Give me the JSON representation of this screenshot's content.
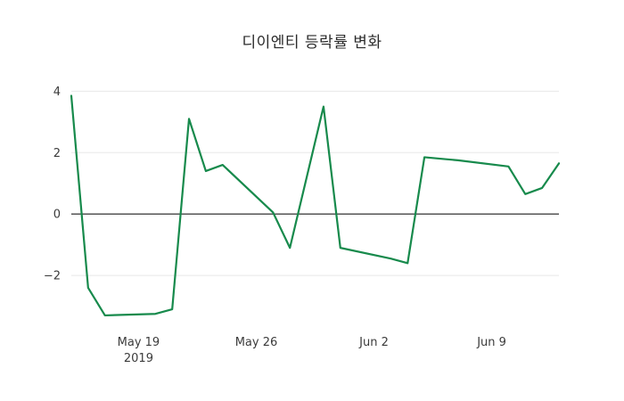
{
  "title": "디이엔티 등락률 변화",
  "colors": {
    "line": "#178a4c",
    "grid": "#e8e8e8",
    "zero_line": "#444444",
    "text": "#3b3b3b",
    "title_text": "#2a2a2a",
    "background": "#ffffff"
  },
  "chart_data": {
    "type": "line",
    "title": "디이엔티 등락률 변화",
    "xlabel": "",
    "ylabel": "",
    "grid": true,
    "legend": false,
    "xlim": [
      0,
      29
    ],
    "ylim": [
      -3.65,
      4.3
    ],
    "line_color": "#178a4c",
    "yticks": [
      {
        "value": 4,
        "label": "4"
      },
      {
        "value": 2,
        "label": "2"
      },
      {
        "value": 0,
        "label": "0"
      },
      {
        "value": -2,
        "label": "−2"
      }
    ],
    "xticks": [
      {
        "offset": 4,
        "label": "May 19",
        "sublabel": "2019"
      },
      {
        "offset": 11,
        "label": "May 26",
        "sublabel": ""
      },
      {
        "offset": 18,
        "label": "Jun 2",
        "sublabel": ""
      },
      {
        "offset": 25,
        "label": "Jun 9",
        "sublabel": ""
      }
    ],
    "points": [
      {
        "date": "May 15",
        "offset": 0,
        "value": 3.85
      },
      {
        "date": "May 16",
        "offset": 1,
        "value": -2.4
      },
      {
        "date": "May 17",
        "offset": 2,
        "value": -3.3
      },
      {
        "date": "May 20",
        "offset": 5,
        "value": -3.25
      },
      {
        "date": "May 21",
        "offset": 6,
        "value": -3.1
      },
      {
        "date": "May 22",
        "offset": 7,
        "value": 3.1
      },
      {
        "date": "May 23",
        "offset": 8,
        "value": 1.4
      },
      {
        "date": "May 24",
        "offset": 9,
        "value": 1.6
      },
      {
        "date": "May 27",
        "offset": 12,
        "value": 0.05
      },
      {
        "date": "May 28",
        "offset": 13,
        "value": -1.1
      },
      {
        "date": "May 29",
        "offset": 14,
        "value": 1.2
      },
      {
        "date": "May 30",
        "offset": 15,
        "value": 3.5
      },
      {
        "date": "May 31",
        "offset": 16,
        "value": -1.1
      },
      {
        "date": "Jun 3",
        "offset": 19,
        "value": -1.45
      },
      {
        "date": "Jun 4",
        "offset": 20,
        "value": -1.6
      },
      {
        "date": "Jun 5",
        "offset": 21,
        "value": 1.85
      },
      {
        "date": "Jun 6",
        "offset": 22,
        "value": 1.8
      },
      {
        "date": "Jun 7",
        "offset": 23,
        "value": 1.75
      },
      {
        "date": "Jun 10",
        "offset": 26,
        "value": 1.55
      },
      {
        "date": "Jun 11",
        "offset": 27,
        "value": 0.65
      },
      {
        "date": "Jun 12",
        "offset": 28,
        "value": 0.85
      },
      {
        "date": "Jun 13",
        "offset": 29,
        "value": 1.65
      }
    ]
  }
}
